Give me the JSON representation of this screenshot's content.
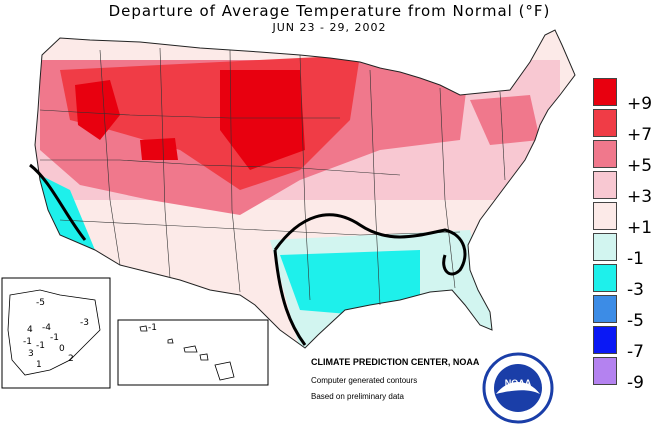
{
  "title": "Departure of Average Temperature from Normal (°F)",
  "subtitle": "JUN 23 - 29, 2002",
  "legend": [
    {
      "label": "+9",
      "color": "#e8000f"
    },
    {
      "label": "+7",
      "color": "#f03c46"
    },
    {
      "label": "+5",
      "color": "#f0788c"
    },
    {
      "label": "+3",
      "color": "#f8c8d2"
    },
    {
      "label": "+1",
      "color": "#fceae8"
    },
    {
      "label": "-1",
      "color": "#d2f5f0"
    },
    {
      "label": "-3",
      "color": "#1ef0eb"
    },
    {
      "label": "-5",
      "color": "#3c8ce6"
    },
    {
      "label": "-7",
      "color": "#0a18f5"
    },
    {
      "label": "-9",
      "color": "#b482f0"
    }
  ],
  "credits": {
    "center": "CLIMATE PREDICTION CENTER, NOAA",
    "line2": "Computer generated contours",
    "line3": "Based on preliminary data"
  },
  "logo": {
    "text": "NOAA"
  },
  "alaska_labels": [
    "-5",
    "-3",
    "-4",
    "4",
    "-1",
    "-1",
    "3",
    "-1",
    "0",
    "1",
    "2"
  ],
  "hawaii_labels": [
    "-1"
  ]
}
